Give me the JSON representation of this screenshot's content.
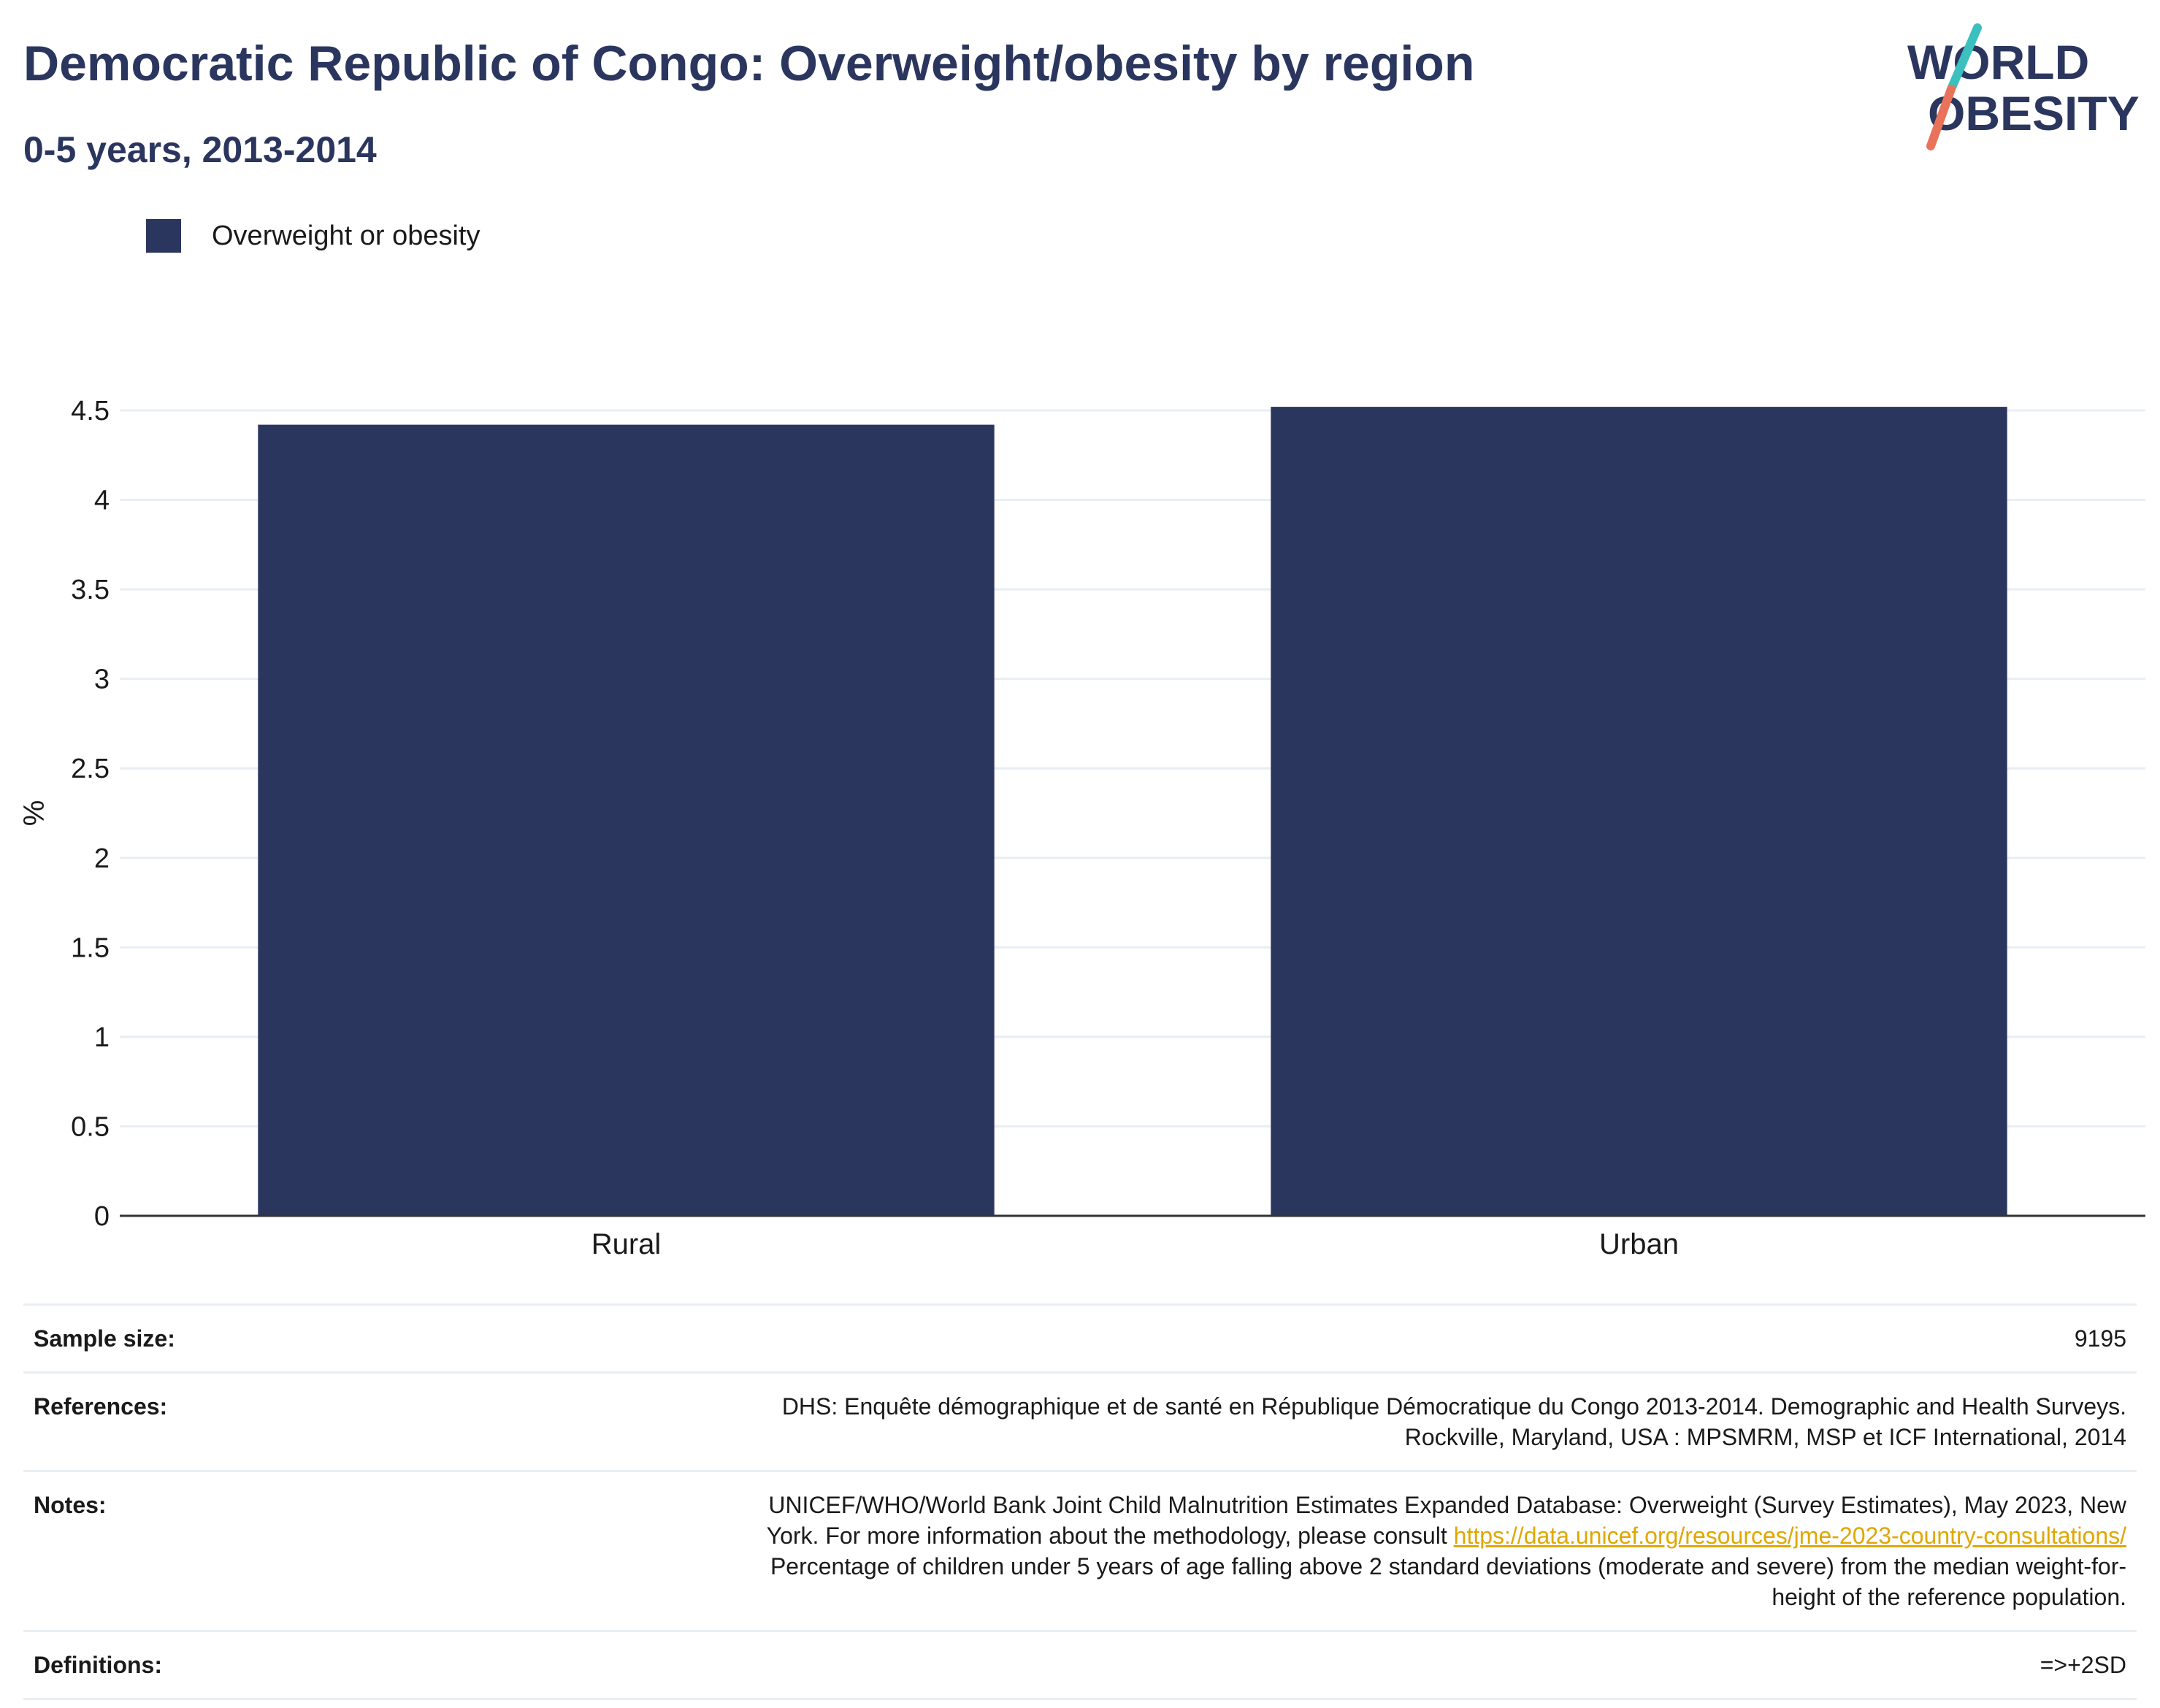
{
  "header": {
    "title": "Democratic Republic of Congo: Overweight/obesity by region",
    "subtitle": "0-5 years, 2013-2014"
  },
  "logo": {
    "line1": "WORLD",
    "line2": "OBESITY",
    "colors": {
      "text": "#2b365f",
      "slash_top": "#3cbfbf",
      "slash_bottom": "#e8735a"
    }
  },
  "colors": {
    "bar": "#2b365f",
    "grid": "#e8eef4",
    "axis": "#333333"
  },
  "chart_data": {
    "type": "bar",
    "categories": [
      "Rural",
      "Urban"
    ],
    "series": [
      {
        "name": "Overweight or obesity",
        "values": [
          4.42,
          4.52
        ]
      }
    ],
    "title": "Democratic Republic of Congo: Overweight/obesity by region",
    "subtitle": "0-5 years, 2013-2014",
    "xlabel": "",
    "ylabel": "%",
    "ylim": [
      0,
      4.5
    ],
    "yticks": [
      "0",
      "0.5",
      "1",
      "1.5",
      "2",
      "2.5",
      "3",
      "3.5",
      "4",
      "4.5"
    ],
    "grid": true,
    "legend": "top-left"
  },
  "meta": {
    "sample_size": {
      "label": "Sample size:",
      "value": "9195"
    },
    "references": {
      "label": "References:",
      "line1": "DHS: Enquête démographique et de santé en République Démocratique du Congo 2013-2014. Demographic and Health Surveys.",
      "line2": "Rockville, Maryland, USA : MPSMRM, MSP et ICF International, 2014"
    },
    "notes": {
      "label": "Notes:",
      "line1": "UNICEF/WHO/World Bank Joint Child Malnutrition Estimates Expanded Database: Overweight (Survey Estimates), May 2023, New",
      "line2_prefix": "York. For more information about the methodology, please consult ",
      "link": "https://data.unicef.org/resources/jme-2023-country-consultations/",
      "line3": "Percentage of children under 5 years of age falling above 2 standard deviations (moderate and severe) from the median weight-for-",
      "line4": "height of the reference population."
    },
    "definitions": {
      "label": "Definitions:",
      "value": "=>+2SD"
    }
  }
}
